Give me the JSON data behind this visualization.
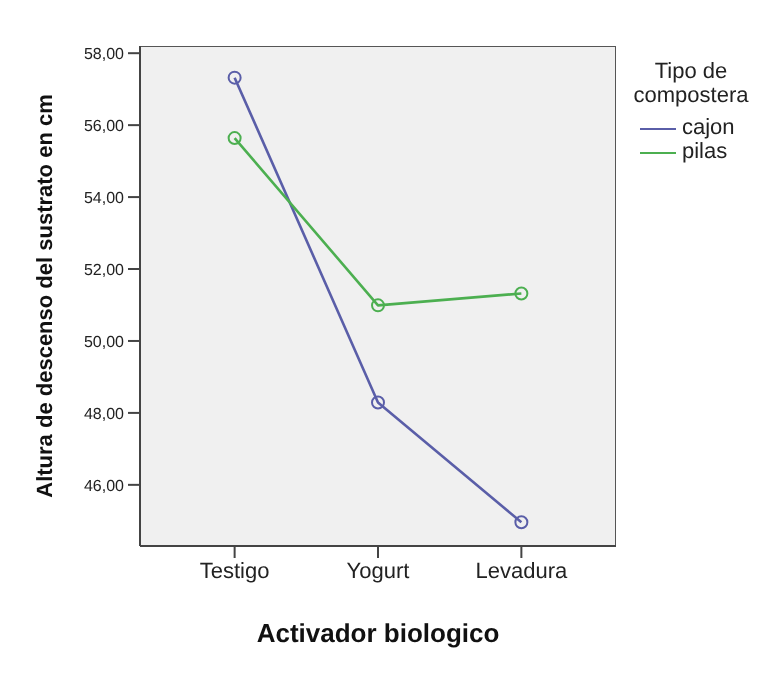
{
  "chart_data": {
    "type": "line",
    "xlabel": "Activador biologico",
    "ylabel": "Altura de descenso del sustrato en cm",
    "legend_title": "Tipo de compostera",
    "categories": [
      "Testigo",
      "Yogurt",
      "Levadura"
    ],
    "series": [
      {
        "name": "cajon",
        "color": "#5a5ea8",
        "values": [
          57.32,
          48.29,
          44.96
        ]
      },
      {
        "name": "pilas",
        "color": "#4caf50",
        "values": [
          55.64,
          50.99,
          51.32
        ]
      }
    ],
    "ylim": [
      44.3,
      58.2
    ],
    "yticks": [
      {
        "value": 46,
        "label": "46,00"
      },
      {
        "value": 48,
        "label": "48,00"
      },
      {
        "value": 50,
        "label": "50,00"
      },
      {
        "value": 52,
        "label": "52,00"
      },
      {
        "value": 54,
        "label": "54,00"
      },
      {
        "value": 56,
        "label": "56,00"
      },
      {
        "value": 58,
        "label": "58,00"
      }
    ],
    "grid": false,
    "legend": "top right",
    "marker": "circle",
    "line_style": "solid"
  }
}
